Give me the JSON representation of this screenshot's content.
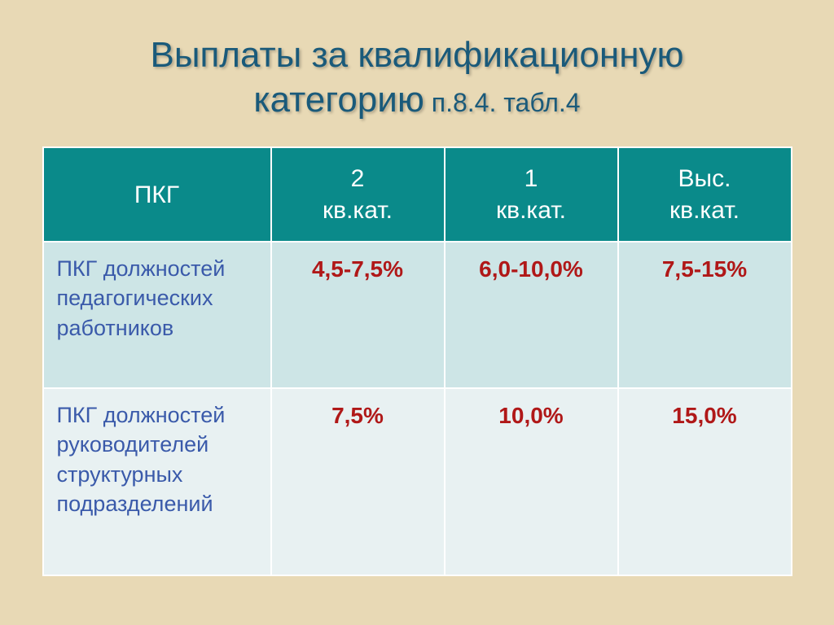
{
  "title": {
    "line1": "Выплаты за квалификационную",
    "line2_main": "категорию",
    "line2_sub": " п.8.4. табл.4"
  },
  "table": {
    "header_bg": "#0a8a8a",
    "header_fg": "#ffffff",
    "row_a_bg": "#cde5e6",
    "row_b_bg": "#e8f1f2",
    "label_color": "#3a5aaa",
    "value_color": "#b01818",
    "border_color": "#ffffff",
    "columns": [
      "ПКГ",
      "2\nкв.кат.",
      "1\nкв.кат.",
      "Выс.\nкв.кат."
    ],
    "rows": [
      {
        "label": "ПКГ должностей педагогических работников",
        "values": [
          "4,5-7,5%",
          "6,0-10,0%",
          "7,5-15%"
        ]
      },
      {
        "label": "ПКГ должностей руководителей структурных подразделений",
        "values": [
          "7,5%",
          "10,0%",
          "15,0%"
        ]
      }
    ]
  },
  "style": {
    "page_bg": "#e8d9b5",
    "title_color": "#1a5a7a",
    "title_fontsize_main": 44,
    "title_fontsize_sub": 32,
    "cell_fontsize": 28,
    "header_fontsize": 30
  }
}
